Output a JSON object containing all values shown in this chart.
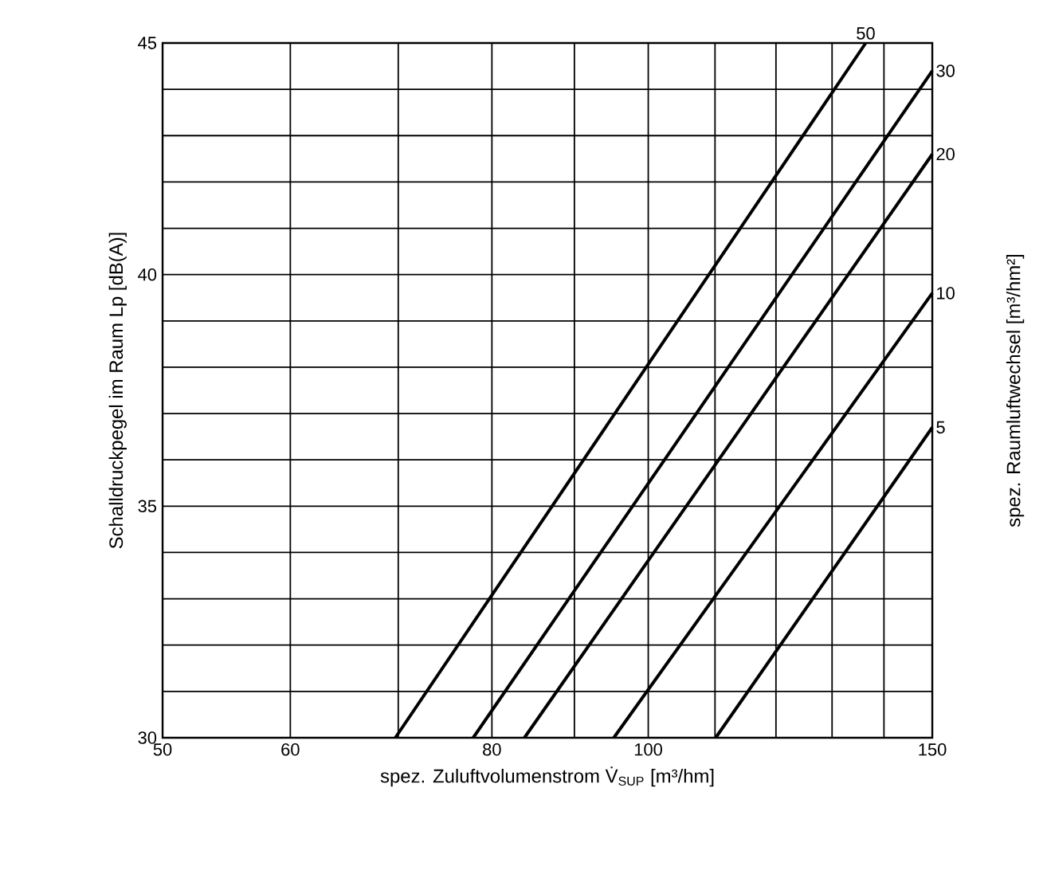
{
  "chart_data": {
    "type": "line",
    "xlabel": "spez. Zuluftvolumenstrom V̇$_{SUP}$ [m³/hm]",
    "ylabel": "Schalldruckpegel im Raum  Lp [dB(A)]",
    "y2label": "spez. Raumluftwechsel [m³/hm²]",
    "log": "x",
    "grid": true,
    "marker": "none",
    "line_style": "solid",
    "xlim": [
      50,
      150
    ],
    "ylim": [
      30,
      45
    ],
    "xticks": [
      50,
      60,
      {
        "value": 70,
        "label": null
      },
      80,
      {
        "value": 90,
        "label": null
      },
      100,
      {
        "value": 110,
        "label": null
      },
      {
        "value": 120,
        "label": null
      },
      {
        "value": 130,
        "label": null
      },
      {
        "value": 140,
        "label": null
      },
      150
    ],
    "yticks": [
      30,
      {
        "value": 31,
        "label": null
      },
      {
        "value": 32,
        "label": null
      },
      {
        "value": 33,
        "label": null
      },
      {
        "value": 34,
        "label": null
      },
      35,
      {
        "value": 36,
        "label": null
      },
      {
        "value": 37,
        "label": null
      },
      {
        "value": 38,
        "label": null
      },
      {
        "value": 39,
        "label": null
      },
      40,
      {
        "value": 41,
        "label": null
      },
      {
        "value": 42,
        "label": null
      },
      {
        "value": 43,
        "label": null
      },
      {
        "value": 44,
        "label": null
      },
      45
    ],
    "series": [
      {
        "name": "50",
        "color": "#000000",
        "x": [
          69.7,
          136.4
        ],
        "values": [
          30,
          45
        ]
      },
      {
        "name": "30",
        "color": "#000000",
        "x": [
          77.9,
          150
        ],
        "values": [
          30,
          44.4
        ]
      },
      {
        "name": "20",
        "color": "#000000",
        "x": [
          83.8,
          150
        ],
        "values": [
          30,
          42.6
        ]
      },
      {
        "name": "10",
        "color": "#000000",
        "x": [
          95.2,
          150
        ],
        "values": [
          30,
          39.6
        ]
      },
      {
        "name": "5",
        "color": "#000000",
        "x": [
          110.1,
          150
        ],
        "values": [
          30,
          36.7
        ]
      }
    ]
  }
}
